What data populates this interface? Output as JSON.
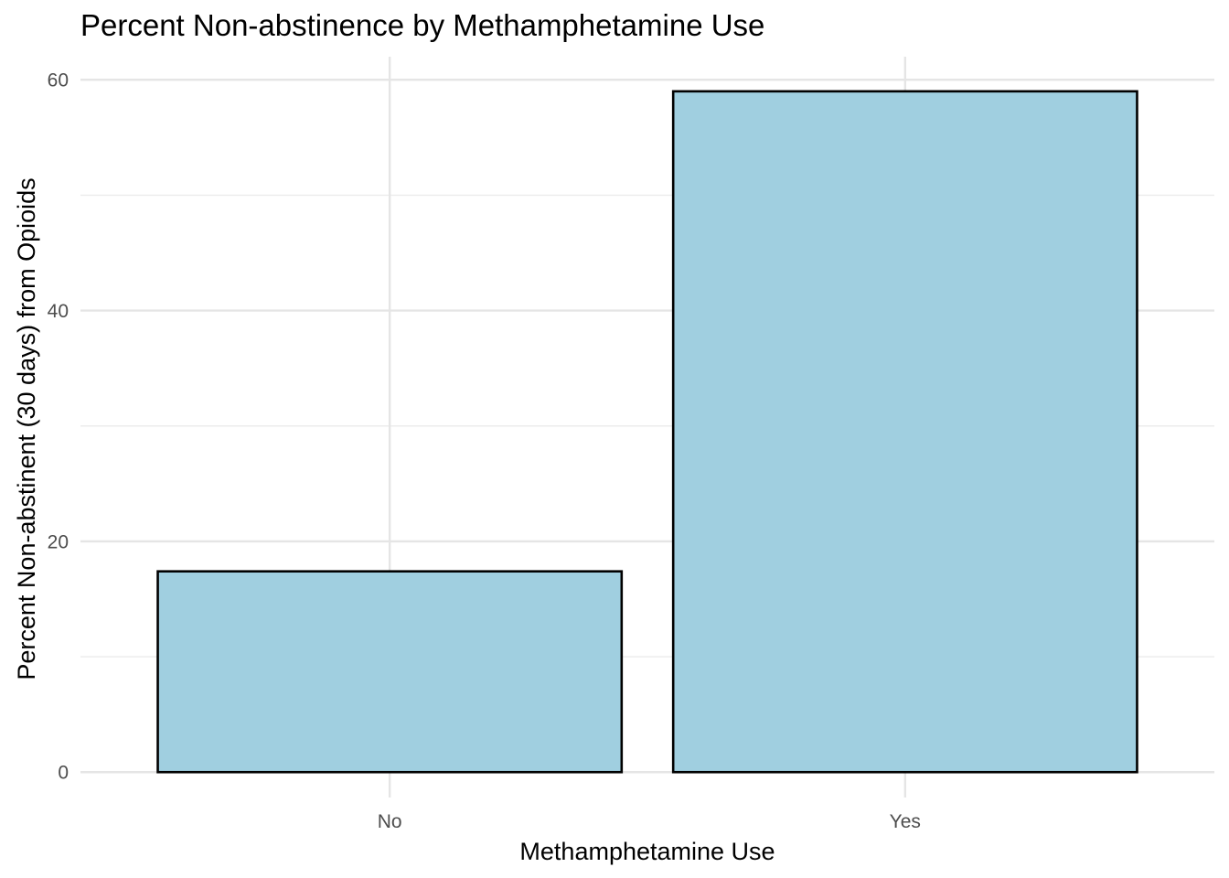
{
  "chart_data": {
    "type": "bar",
    "title": "Percent Non-abstinence by Methamphetamine Use",
    "xlabel": "Methamphetamine Use",
    "ylabel": "Percent Non-abstinent (30 days) from Opioids",
    "categories": [
      "No",
      "Yes"
    ],
    "values": [
      17.4,
      59.0
    ],
    "ylim": [
      -2.2,
      62
    ],
    "yticks": [
      0,
      20,
      40,
      60
    ],
    "yticks_minor": [
      10,
      30,
      50
    ],
    "grid": true,
    "legend": "none",
    "colors": {
      "bar_fill": "#a0cfe0",
      "bar_outline": "#000000",
      "grid": "#e5e5e5",
      "background": "#ffffff"
    }
  }
}
